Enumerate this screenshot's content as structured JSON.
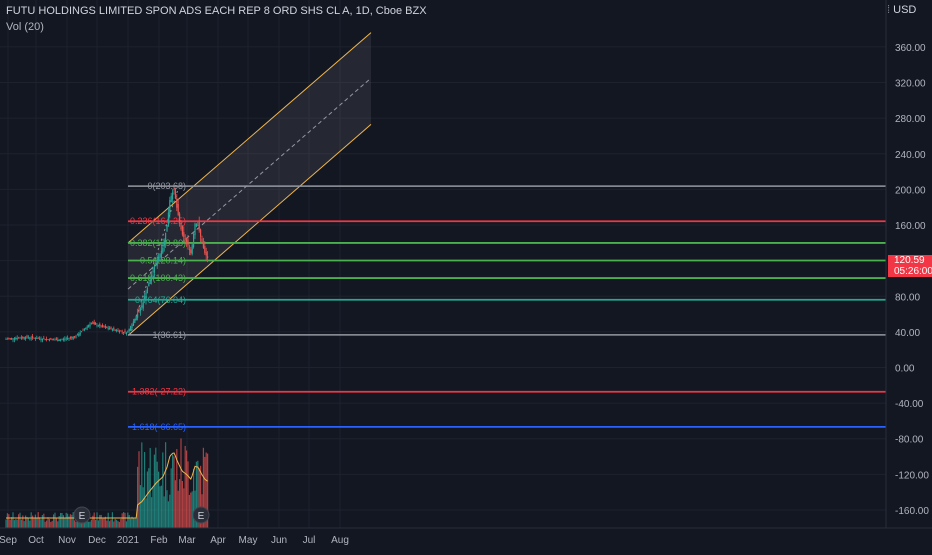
{
  "header": {
    "symbol_line": "FUTU HOLDINGS LIMITED SPON ADS EACH REP 8 ORD SHS CL A, 1D, Cboe BZX",
    "volume_label": "Vol (20)",
    "currency": "USD"
  },
  "price_tag": {
    "price": "120.59",
    "countdown": "05:26:00",
    "color": "#f23645"
  },
  "colors": {
    "background": "#131722",
    "up": "#26a69a",
    "down": "#ef5350",
    "channel": "#f0b64e",
    "volume_ma": "#f0b64e"
  },
  "chart_data": {
    "type": "candlestick",
    "y_range": [
      -175,
      390
    ],
    "y_ticks": [
      "360.00",
      "320.00",
      "280.00",
      "240.00",
      "200.00",
      "160.00",
      "120.00",
      "80.00",
      "40.00",
      "0.00",
      "-40.00",
      "-80.00",
      "-120.00",
      "-160.00"
    ],
    "x_ticks": [
      "Sep",
      "Oct",
      "Nov",
      "Dec",
      "2021",
      "Feb",
      "Mar",
      "Apr",
      "May",
      "Jun",
      "Jul",
      "Aug"
    ],
    "fib_levels": [
      {
        "label": "0(203.68)",
        "value": 203.68,
        "color": "#9598a1"
      },
      {
        "label": "0.236(164.25)",
        "value": 164.25,
        "color": "#f23645"
      },
      {
        "label": "0.382(139.86)",
        "value": 139.86,
        "color": "#4caf50"
      },
      {
        "label": "0.5(120.14)",
        "value": 120.14,
        "color": "#4caf50"
      },
      {
        "label": "0.618(100.43)",
        "value": 100.43,
        "color": "#4caf50"
      },
      {
        "label": "0.764(76.04)",
        "value": 76.04,
        "color": "#22ab94"
      },
      {
        "label": "1(36.61)",
        "value": 36.61,
        "color": "#9598a1"
      },
      {
        "label": "1.382(-27.22)",
        "value": -27.22,
        "color": "#f23645"
      },
      {
        "label": "1.618(-66.65)",
        "value": -66.65,
        "color": "#2962ff"
      }
    ],
    "channel": {
      "upper": [
        [
          "2021-01-01",
          140
        ],
        [
          "2021-09-01",
          376
        ]
      ],
      "middle": [
        [
          "2021-01-01",
          88
        ],
        [
          "2021-09-01",
          325
        ]
      ],
      "lower": [
        [
          "2021-01-01",
          36
        ],
        [
          "2021-09-01",
          273
        ]
      ]
    },
    "earnings_markers": [
      "E",
      "E"
    ],
    "earnings_dates": [
      "2020-11-16",
      "2021-03-15"
    ]
  }
}
